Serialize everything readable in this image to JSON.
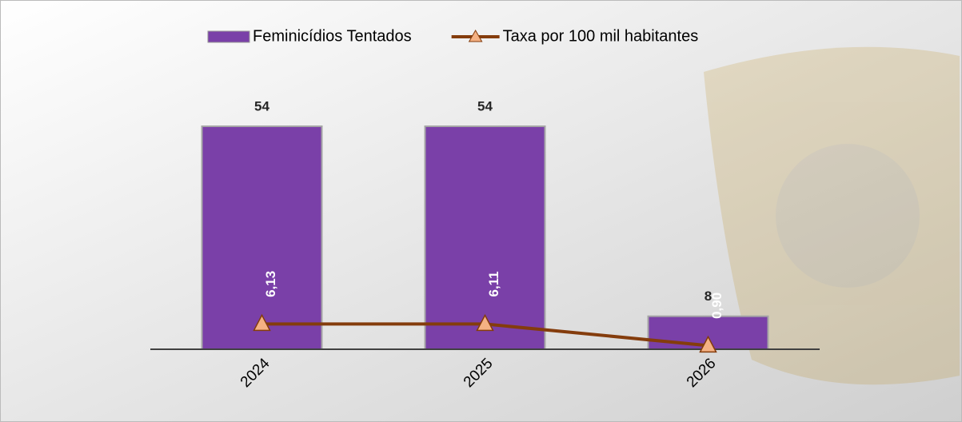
{
  "chart_data": {
    "type": "bar",
    "categories": [
      "2024",
      "2025",
      "2026"
    ],
    "ylim": [
      0,
      60
    ],
    "y2lim": [
      0,
      60
    ],
    "legend": "top",
    "series": [
      {
        "name": "Feminicídios Tentados",
        "type": "bar",
        "color": "#7a40a8",
        "values": [
          54,
          54,
          8
        ]
      },
      {
        "name": "Taxa por 100 mil habitantes",
        "type": "line",
        "axis": "y2",
        "color": "#843c0c",
        "marker_color": "#f4b183",
        "values": [
          6.13,
          6.11,
          0.9
        ],
        "value_labels": [
          "6,13",
          "6,11",
          "0,90"
        ]
      }
    ]
  }
}
